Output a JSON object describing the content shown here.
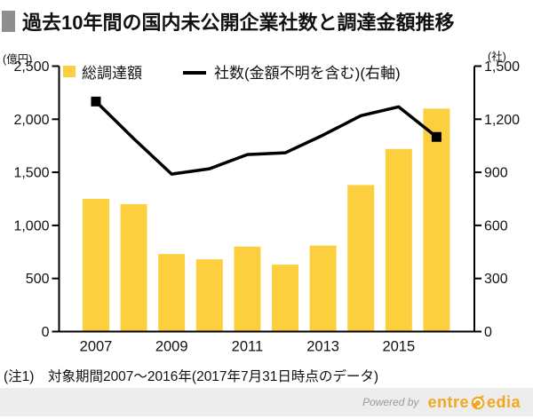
{
  "page": {
    "title": "過去10年間の国内未公開企業社数と調達金額推移"
  },
  "chart_data": {
    "type": "bar+line",
    "title": "過去10年間の国内未公開企業社数と調達金額推移",
    "categories": [
      "2007",
      "2008",
      "2009",
      "2010",
      "2011",
      "2012",
      "2013",
      "2014",
      "2015",
      "2016"
    ],
    "x_tick_labels": [
      "2007",
      "2009",
      "2011",
      "2013",
      "2015"
    ],
    "x_tick_positions": [
      0,
      2,
      4,
      6,
      8
    ],
    "series": [
      {
        "name": "総調達額",
        "type": "bar",
        "axis": "left",
        "values": [
          1250,
          1200,
          730,
          680,
          800,
          630,
          810,
          1380,
          1720,
          2100
        ]
      },
      {
        "name": "社数(金額不明を含む)(右軸)",
        "type": "line",
        "axis": "right",
        "values": [
          1300,
          1090,
          890,
          920,
          1000,
          1010,
          1110,
          1220,
          1270,
          1100
        ],
        "markers": "first-and-last-point"
      }
    ],
    "left_axis": {
      "unit": "(億円)",
      "min": 0,
      "max": 2500,
      "ticks": [
        0,
        500,
        1000,
        1500,
        2000,
        2500
      ],
      "tick_labels": [
        "0",
        "500",
        "1,000",
        "1,500",
        "2,000",
        "2,500"
      ]
    },
    "right_axis": {
      "unit": "(社)",
      "min": 0,
      "max": 1500,
      "ticks": [
        0,
        300,
        600,
        900,
        1200,
        1500
      ],
      "tick_labels": [
        "0",
        "300",
        "600",
        "900",
        "1,200",
        "1,500"
      ]
    },
    "legend_position": "top-inside",
    "grid": false
  },
  "footnote": {
    "text": "(注1)　対象期間2007～2016年(2017年7月31日時点のデータ)"
  },
  "footer": {
    "powered_by_label": "Powered by",
    "brand_prefix": "entre",
    "brand_suffix": "edia"
  },
  "colors": {
    "bar": "#FCCF3F",
    "line": "#000000",
    "title_bullet": "#8E8E8E",
    "footer_bg": "#EDEDED",
    "brand": "#F2A71F",
    "powered_by": "#9A9A9A"
  }
}
